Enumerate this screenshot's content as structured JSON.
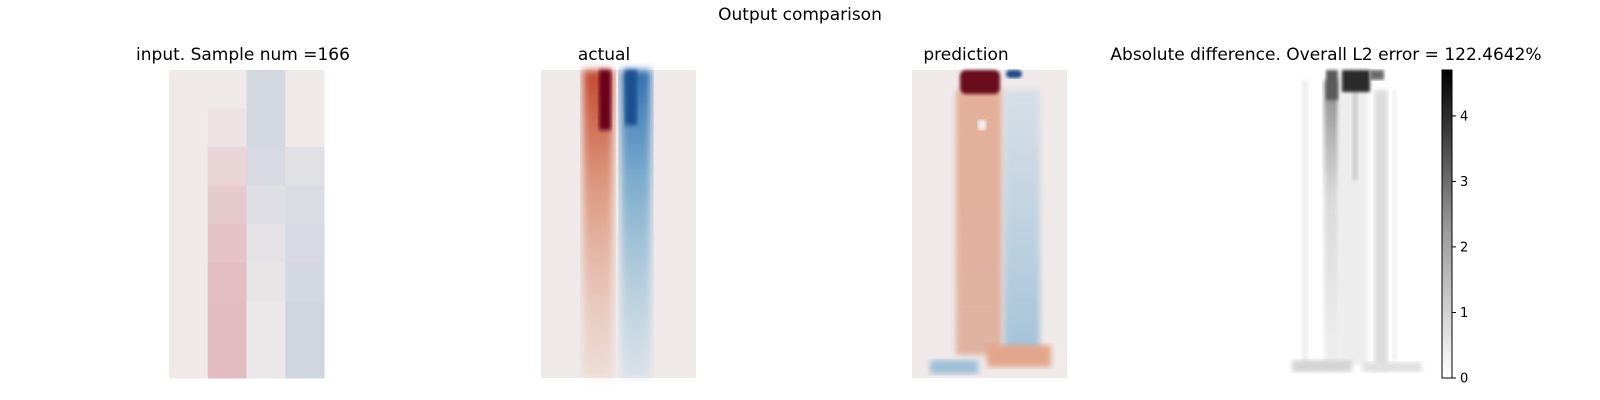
{
  "figure": {
    "title": "Output comparison"
  },
  "panels": [
    {
      "title": "input. Sample num =166"
    },
    {
      "title": "actual"
    },
    {
      "title": "prediction"
    },
    {
      "title": "Absolute difference. Overall L2 error = 122.4642%"
    }
  ],
  "colors": {
    "neutral": "#efe9e9",
    "red": "#67001f",
    "blue": "#053061"
  },
  "chart_data": [
    {
      "type": "heatmap",
      "title": "input. Sample num =166",
      "colormap": "RdBu_r",
      "grid": "off",
      "rows": 8,
      "cols": 4,
      "values": [
        [
          0.0,
          0.0,
          -0.08,
          0.0
        ],
        [
          0.0,
          0.02,
          -0.08,
          0.0
        ],
        [
          0.0,
          0.06,
          -0.07,
          -0.04
        ],
        [
          0.0,
          0.09,
          -0.05,
          -0.06
        ],
        [
          0.0,
          0.11,
          -0.03,
          -0.07
        ],
        [
          0.0,
          0.12,
          -0.02,
          -0.08
        ],
        [
          0.0,
          0.13,
          -0.01,
          -0.09
        ],
        [
          0.0,
          0.13,
          -0.01,
          -0.09
        ]
      ]
    },
    {
      "type": "heatmap",
      "title": "actual",
      "colormap": "RdBu_r",
      "grid": "off",
      "description_values": "positive (red) column left of center, negative (blue) column right of center, strongest at top, fading downward"
    },
    {
      "type": "heatmap",
      "title": "prediction",
      "colormap": "RdBu_r",
      "grid": "off"
    },
    {
      "type": "heatmap",
      "title": "Absolute difference. Overall L2 error = 122.4642%",
      "colormap": "Greys",
      "grid": "off",
      "colorbar": {
        "ticks": [
          "0",
          "1",
          "2",
          "3",
          "4"
        ],
        "range": [
          0,
          4.7
        ]
      }
    }
  ]
}
